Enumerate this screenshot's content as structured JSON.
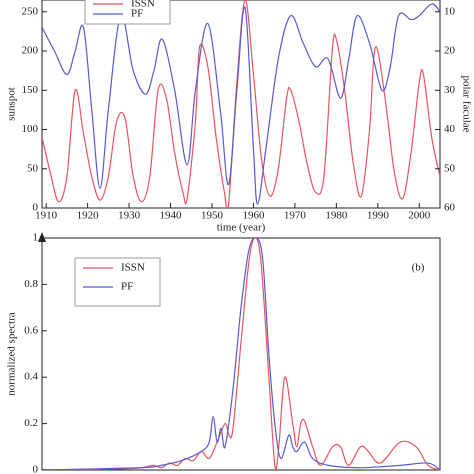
{
  "chart_data": [
    {
      "type": "line",
      "xlabel": "time (year)",
      "ylabel": "sunspot",
      "y2label": "polar faculae",
      "xlim": [
        1909,
        2005
      ],
      "xticks": [
        1910,
        1920,
        1930,
        1940,
        1950,
        1960,
        1970,
        1980,
        1990,
        2000
      ],
      "ylim": [
        0,
        265
      ],
      "yticks": [
        0,
        50,
        100,
        150,
        200,
        250
      ],
      "y2lim": [
        60,
        7
      ],
      "y2ticks": [
        10,
        20,
        30,
        40,
        50,
        60
      ],
      "series": [
        {
          "name": "ISSN",
          "color": "#e8555f",
          "x": [
            1909,
            1911,
            1913,
            1915,
            1917,
            1919,
            1921,
            1923,
            1925,
            1927,
            1929,
            1931,
            1933,
            1935,
            1937,
            1939,
            1941,
            1943,
            1944,
            1946,
            1947,
            1949,
            1951,
            1953,
            1954,
            1956,
            1958,
            1960,
            1962,
            1964,
            1966,
            1968,
            1969,
            1971,
            1973,
            1975,
            1977,
            1979,
            1980,
            1982,
            1984,
            1986,
            1988,
            1989,
            1990,
            1992,
            1994,
            1996,
            1998,
            2000,
            2001,
            2003,
            2005
          ],
          "values": [
            90,
            45,
            8,
            40,
            150,
            95,
            40,
            10,
            40,
            110,
            115,
            40,
            8,
            40,
            150,
            140,
            70,
            20,
            12,
            110,
            205,
            180,
            90,
            20,
            5,
            160,
            265,
            170,
            60,
            15,
            50,
            140,
            150,
            110,
            55,
            20,
            40,
            200,
            215,
            150,
            60,
            15,
            100,
            190,
            200,
            130,
            45,
            12,
            70,
            160,
            170,
            90,
            40
          ]
        },
        {
          "name": "PF",
          "color": "#5a5ad0",
          "axis": "y2",
          "x": [
            1909,
            1912,
            1915,
            1917,
            1919,
            1921,
            1923,
            1925,
            1928,
            1931,
            1934,
            1936,
            1938,
            1941,
            1944,
            1946,
            1949,
            1952,
            1954,
            1956,
            1958,
            1960,
            1961,
            1963,
            1966,
            1969,
            1972,
            1975,
            1978,
            1981,
            1983,
            1985,
            1988,
            1991,
            1993,
            1995,
            1998,
            2000,
            2003,
            2005
          ],
          "values": [
            14,
            20,
            26,
            20,
            14,
            35,
            55,
            35,
            11,
            25,
            31,
            25,
            17,
            30,
            49,
            30,
            13,
            35,
            54,
            30,
            9,
            45,
            59,
            45,
            22,
            11,
            18,
            24,
            22,
            32,
            22,
            11,
            18,
            30,
            24,
            11,
            12,
            11,
            8,
            10
          ]
        }
      ]
    },
    {
      "type": "line",
      "ylabel": "normalized spectra",
      "annotation": "(b)",
      "xlim": [
        0,
        100
      ],
      "ylim": [
        0,
        1
      ],
      "yticks": [
        0,
        0.2,
        0.4,
        0.6,
        0.8,
        1
      ],
      "series": [
        {
          "name": "ISSN",
          "color": "#e8555f",
          "x": [
            0,
            20,
            25,
            28,
            30,
            32,
            34,
            36,
            38,
            40,
            42,
            44,
            46,
            47,
            48,
            50,
            52,
            53.5,
            55,
            57,
            58.5,
            59.5,
            61,
            63,
            64,
            65,
            66,
            68,
            70,
            73,
            75,
            77,
            80,
            82,
            85,
            90,
            94,
            97,
            100
          ],
          "values": [
            0,
            0.005,
            0.01,
            0.02,
            0.01,
            0.03,
            0.02,
            0.05,
            0.04,
            0.08,
            0.05,
            0.12,
            0.2,
            0.15,
            0.18,
            0.55,
            0.9,
            1,
            0.9,
            0.4,
            0.02,
            0.1,
            0.4,
            0.2,
            0.1,
            0.2,
            0.21,
            0.1,
            0.02,
            0.1,
            0.1,
            0.02,
            0.1,
            0.08,
            0.03,
            0.12,
            0.1,
            0.02,
            0
          ]
        },
        {
          "name": "PF",
          "color": "#5a5ad0",
          "x": [
            0,
            25,
            30,
            35,
            40,
            42,
            43,
            44,
            45,
            46,
            48,
            50,
            52,
            54,
            55.5,
            57,
            58.5,
            60,
            62,
            63,
            64,
            66,
            68,
            72,
            80,
            90,
            97,
            100
          ],
          "values": [
            0,
            0.01,
            0.02,
            0.04,
            0.08,
            0.12,
            0.23,
            0.12,
            0.18,
            0.1,
            0.35,
            0.7,
            0.95,
            1,
            0.9,
            0.5,
            0.2,
            0.05,
            0.15,
            0.1,
            0.08,
            0.12,
            0.05,
            0.02,
            0.01,
            0.02,
            0.03,
            0
          ]
        }
      ]
    }
  ]
}
